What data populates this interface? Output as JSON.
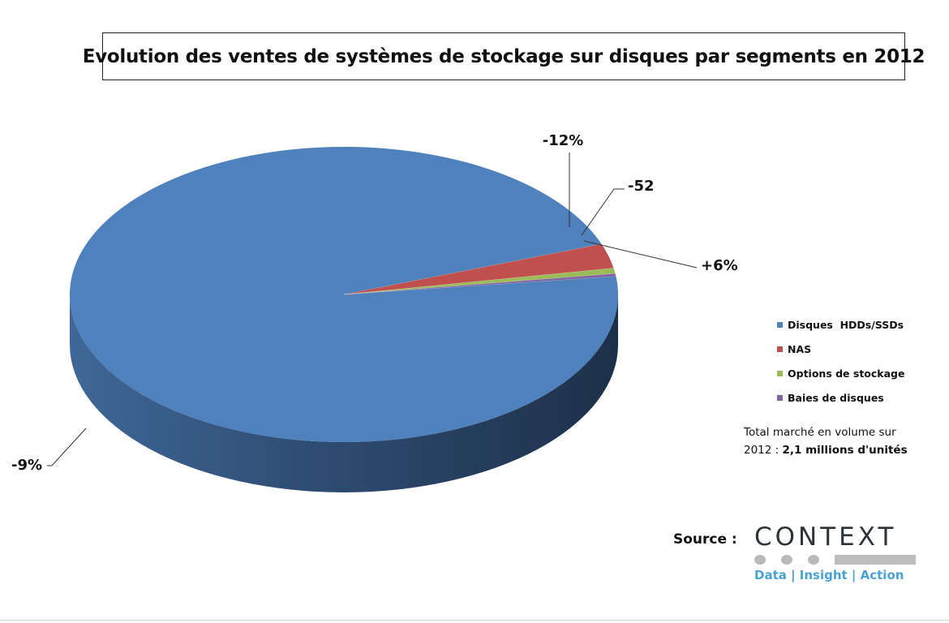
{
  "chart_data": {
    "type": "pie",
    "title": "Evolution des ventes de systèmes de stockage sur disques par segments en 2012",
    "categories": [
      "Disques  HDDs/SSDs",
      "NAS",
      "Options de stockage",
      "Baies de disques"
    ],
    "values": [
      96.4,
      2.7,
      0.6,
      0.3
    ],
    "data_labels": [
      "-9%",
      "-12%",
      "-52",
      "+6%"
    ],
    "colors": [
      "#4f81bd",
      "#c0504d",
      "#9bbb59",
      "#8064a2"
    ],
    "side_colors": [
      "#2f4a6e",
      "#7a2f2d",
      "#5f7535",
      "#4e3d66"
    ],
    "legend_position": "right",
    "grid": false,
    "three_d": true
  },
  "note": {
    "line1": "Total marché en volume sur",
    "line2_prefix": "2012 : ",
    "line2_bold": "2,1 millions d'unités"
  },
  "source": {
    "label": "Source :",
    "logo_word": "CONTEXT",
    "logo_tagline": "Data | Insight | Action"
  }
}
